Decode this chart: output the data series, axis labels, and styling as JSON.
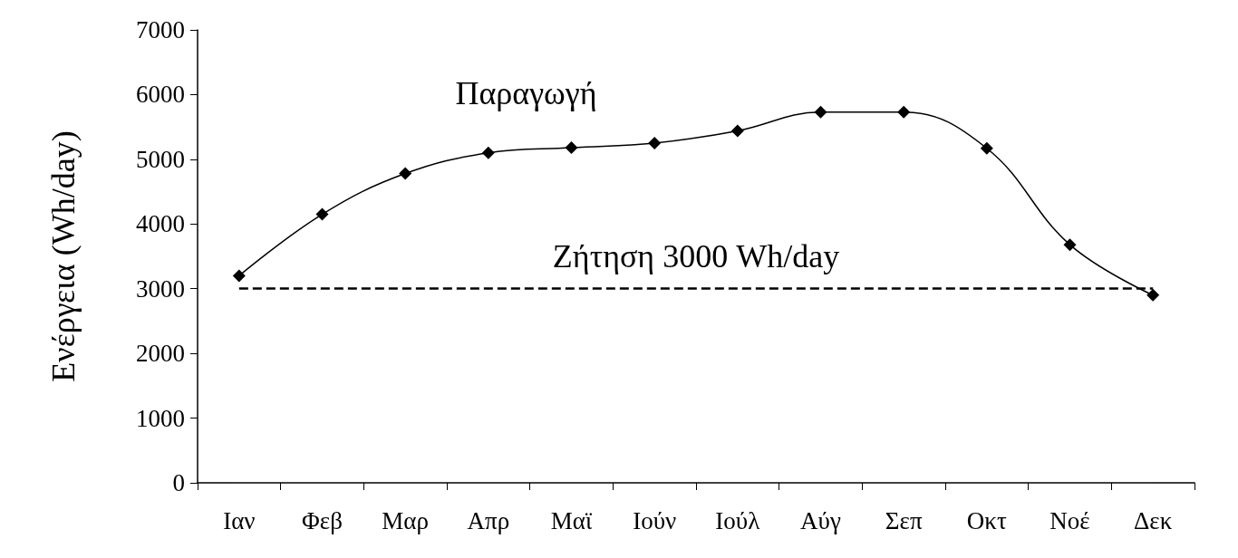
{
  "chart_data": {
    "type": "line",
    "ylabel": "Ενέργεια (Wh/day)",
    "categories": [
      "Ιαν",
      "Φεβ",
      "Μαρ",
      "Απρ",
      "Μαϊ",
      "Ιούν",
      "Ιούλ",
      "Αύγ",
      "Σεπ",
      "Οκτ",
      "Νοέ",
      "Δεκ"
    ],
    "series": [
      {
        "name": "Παραγωγή",
        "color": "#000000",
        "values": [
          3200,
          4150,
          4780,
          5100,
          5180,
          5250,
          5440,
          5730,
          5730,
          5170,
          3680,
          2900
        ]
      }
    ],
    "ylim": [
      0,
      7000
    ],
    "yticks": [
      0,
      1000,
      2000,
      3000,
      4000,
      5000,
      6000,
      7000
    ],
    "ref_lines": [
      {
        "axis": "y",
        "value": 3000,
        "label": "Ζήτηση 3000 Wh/day",
        "color": "#000000",
        "line_style": "dashed"
      }
    ],
    "marker": "diamond",
    "line_style": "solid",
    "grid": false,
    "legend": false
  }
}
